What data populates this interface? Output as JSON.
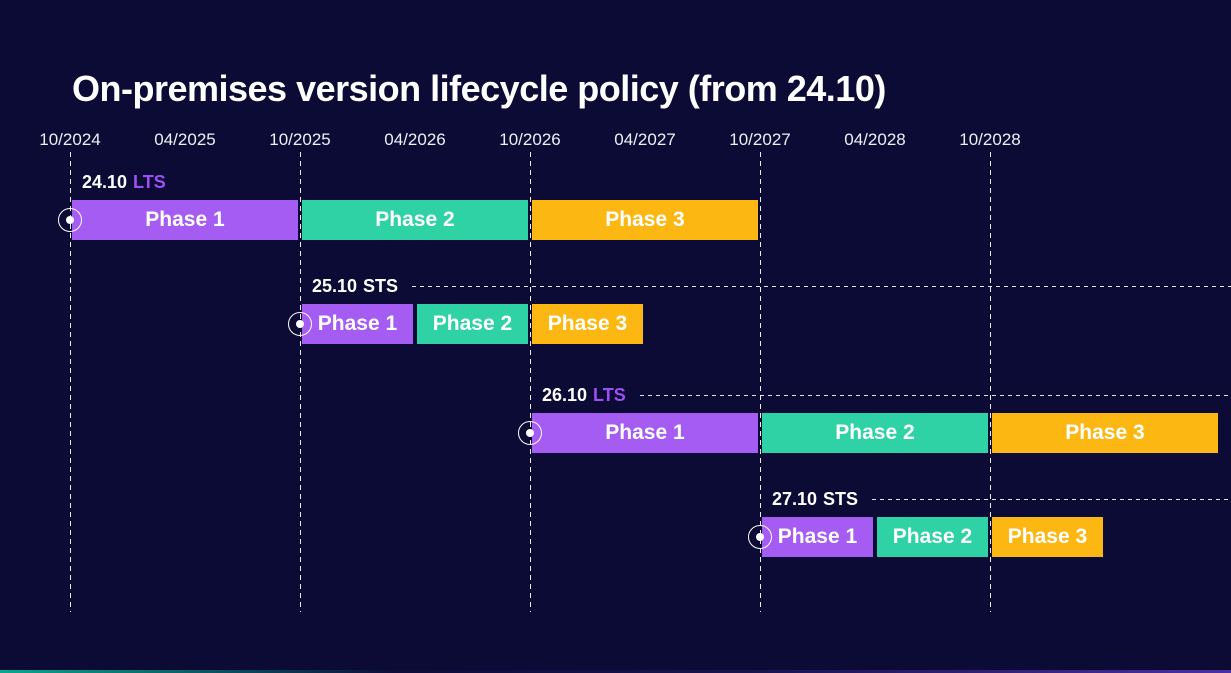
{
  "title": "On-premises version lifecycle policy (from 24.10)",
  "colors": {
    "background": "#0c0b36",
    "phase1": "#a55cf3",
    "phase2": "#2fd2a4",
    "phase3": "#fcb712",
    "lts_accent": "#9c4ff2",
    "sts_text": "#ffffff",
    "text": "#ffffff"
  },
  "chart_data": {
    "type": "gantt",
    "title": "On-premises version lifecycle policy (from 24.10)",
    "x_axis": {
      "tick_labels": [
        "10/2024",
        "04/2025",
        "10/2025",
        "04/2026",
        "10/2026",
        "04/2027",
        "10/2027",
        "04/2028",
        "10/2028"
      ],
      "gridlines": [
        "10/2024",
        "10/2025",
        "10/2026",
        "10/2027",
        "10/2028"
      ]
    },
    "legend": "none",
    "rows": [
      {
        "version": "24.10",
        "channel": "LTS",
        "has_extension_line": false,
        "phases": [
          {
            "label": "Phase 1",
            "start": "10/2024",
            "end": "10/2025",
            "color_key": "phase1"
          },
          {
            "label": "Phase 2",
            "start": "10/2025",
            "end": "10/2026",
            "color_key": "phase2"
          },
          {
            "label": "Phase 3",
            "start": "10/2026",
            "end": "10/2027",
            "color_key": "phase3"
          }
        ]
      },
      {
        "version": "25.10",
        "channel": "STS",
        "has_extension_line": true,
        "phases": [
          {
            "label": "Phase 1",
            "start": "10/2025",
            "end": "04/2026",
            "color_key": "phase1"
          },
          {
            "label": "Phase 2",
            "start": "04/2026",
            "end": "10/2026",
            "color_key": "phase2"
          },
          {
            "label": "Phase 3",
            "start": "10/2026",
            "end": "04/2027",
            "color_key": "phase3"
          }
        ]
      },
      {
        "version": "26.10",
        "channel": "LTS",
        "has_extension_line": true,
        "phases": [
          {
            "label": "Phase 1",
            "start": "10/2026",
            "end": "10/2027",
            "color_key": "phase1"
          },
          {
            "label": "Phase 2",
            "start": "10/2027",
            "end": "10/2028",
            "color_key": "phase2"
          },
          {
            "label": "Phase 3",
            "start": "10/2028",
            "end": "10/2029",
            "color_key": "phase3"
          }
        ]
      },
      {
        "version": "27.10",
        "channel": "STS",
        "has_extension_line": true,
        "phases": [
          {
            "label": "Phase 1",
            "start": "10/2027",
            "end": "04/2028",
            "color_key": "phase1"
          },
          {
            "label": "Phase 2",
            "start": "04/2028",
            "end": "10/2028",
            "color_key": "phase2"
          },
          {
            "label": "Phase 3",
            "start": "10/2028",
            "end": "04/2029",
            "color_key": "phase3"
          }
        ]
      }
    ]
  }
}
